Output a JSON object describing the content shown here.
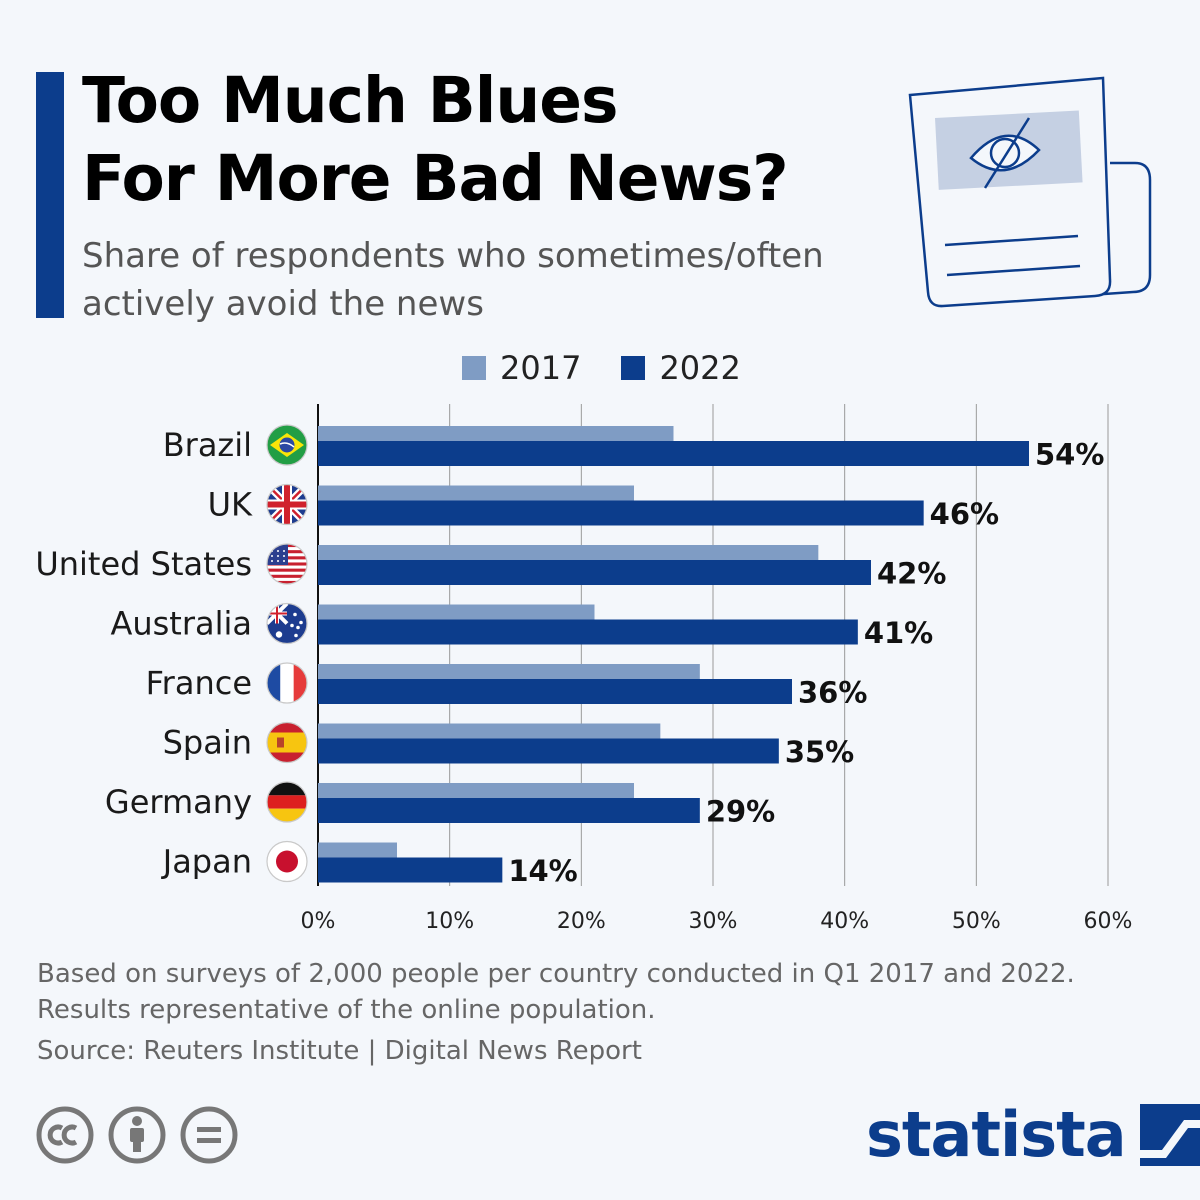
{
  "header": {
    "title_line1": "Too Much Blues",
    "title_line2": "For More Bad News?",
    "subtitle_line1": "Share of respondents who sometimes/often",
    "subtitle_line2": "actively avoid the news"
  },
  "colors": {
    "accent": "#0c3d8c",
    "series_2017": "#7f9cc4",
    "series_2022": "#0c3d8c",
    "grid": "#9a9a9a"
  },
  "chart_data": {
    "type": "bar",
    "orientation": "horizontal",
    "categories": [
      "Brazil",
      "UK",
      "United States",
      "Australia",
      "France",
      "Spain",
      "Germany",
      "Japan"
    ],
    "series": [
      {
        "name": "2017",
        "values": [
          27,
          24,
          38,
          21,
          29,
          26,
          24,
          6
        ]
      },
      {
        "name": "2022",
        "values": [
          54,
          46,
          42,
          41,
          36,
          35,
          29,
          14
        ]
      }
    ],
    "data_labels": [
      "54%",
      "46%",
      "42%",
      "41%",
      "36%",
      "35%",
      "29%",
      "14%"
    ],
    "x_ticks": [
      "0%",
      "10%",
      "20%",
      "30%",
      "40%",
      "50%",
      "60%"
    ],
    "xlim": [
      0,
      60
    ],
    "grid": true,
    "legend": "top",
    "category_icons": [
      "brazil-flag-icon",
      "uk-flag-icon",
      "us-flag-icon",
      "australia-flag-icon",
      "france-flag-icon",
      "spain-flag-icon",
      "germany-flag-icon",
      "japan-flag-icon"
    ]
  },
  "footer": {
    "note_line1": "Based on surveys of 2,000 people per country conducted in Q1 2017 and 2022.",
    "note_line2": "Results representative of the online population.",
    "source": "Source: Reuters Institute | Digital News Report",
    "license_icons": [
      "creative-commons-icon",
      "attribution-icon",
      "no-derivatives-icon"
    ],
    "brand": "statista"
  }
}
